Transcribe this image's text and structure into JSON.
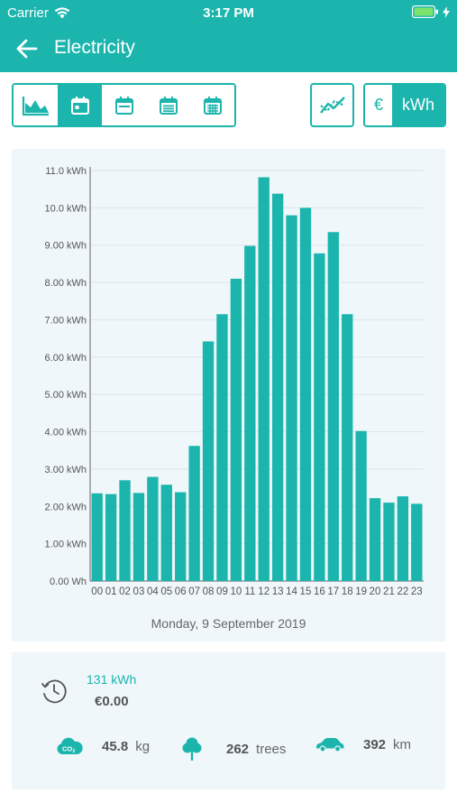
{
  "status": {
    "carrier": "Carrier",
    "time": "3:17 PM"
  },
  "nav": {
    "title": "Electricity"
  },
  "toolbar": {
    "period_buttons": [
      "area-chart-icon",
      "day-calendar-icon",
      "week-calendar-icon",
      "month-calendar-icon",
      "year-calendar-icon"
    ],
    "active_period": 1,
    "unit_euro": "€",
    "unit_kwh": "kWh"
  },
  "colors": {
    "accent": "#1bb5ad",
    "card_bg": "#eff7fa"
  },
  "chart_data": {
    "type": "bar",
    "categories": [
      "00",
      "01",
      "02",
      "03",
      "04",
      "05",
      "06",
      "07",
      "08",
      "09",
      "10",
      "11",
      "12",
      "13",
      "14",
      "15",
      "16",
      "17",
      "18",
      "19",
      "20",
      "21",
      "22",
      "23"
    ],
    "values": [
      2.35,
      2.33,
      2.7,
      2.36,
      2.79,
      2.58,
      2.38,
      3.62,
      6.42,
      7.15,
      8.1,
      8.98,
      10.82,
      10.38,
      9.8,
      10.0,
      8.78,
      9.35,
      7.15,
      4.02,
      2.22,
      2.1,
      2.27,
      2.07
    ],
    "y_ticks": [
      "0.00 Wh",
      "1.00 kWh",
      "2.00 kWh",
      "3.00 kWh",
      "4.00 kWh",
      "5.00 kWh",
      "6.00 kWh",
      "7.00 kWh",
      "8.00 kWh",
      "9.00 kWh",
      "10.0 kWh",
      "11.0 kWh"
    ],
    "ylim": [
      0,
      11
    ],
    "grid": true
  },
  "chart_date": "Monday, 9 September 2019",
  "summary": {
    "total_kwh": "131 kWh",
    "total_cost": "€0.00",
    "co2_value": "45.8",
    "co2_unit": "kg",
    "trees_value": "262",
    "trees_unit": "trees",
    "distance_value": "392",
    "distance_unit": "km"
  }
}
